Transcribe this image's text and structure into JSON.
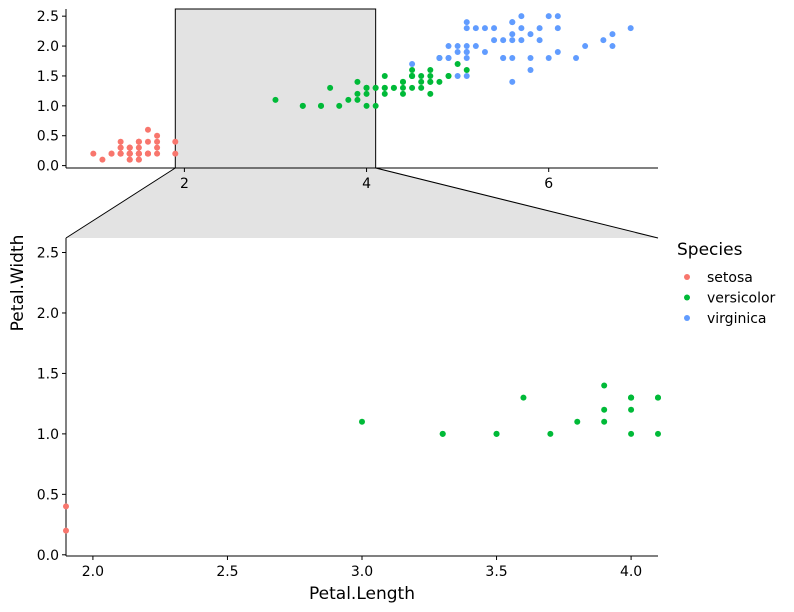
{
  "chart_data": {
    "type": "scatter",
    "xlabel": "Petal.Length",
    "ylabel": "Petal.Width",
    "legend": {
      "title": "Species",
      "placement": "right"
    },
    "colors": {
      "setosa": "#F8766D",
      "versicolor": "#00BA38",
      "virginica": "#619CFF",
      "zoom_fill": "#e3e3e3"
    },
    "overview": {
      "xlim": [
        0.7,
        7.2
      ],
      "ylim": [
        -0.04,
        2.62
      ],
      "xticks": [
        2,
        4,
        6
      ],
      "yticks": [
        0.0,
        0.5,
        1.0,
        1.5,
        2.0,
        2.5
      ],
      "ytick_labels": [
        "0.0",
        "0.5",
        "1.0",
        "1.5",
        "2.0",
        "2.5"
      ],
      "zoom_xrange": [
        1.9,
        4.1
      ]
    },
    "zoom": {
      "xlim": [
        1.9,
        4.1
      ],
      "ylim": [
        -0.01,
        2.62
      ],
      "xticks": [
        2.0,
        2.5,
        3.0,
        3.5,
        4.0
      ],
      "xtick_labels": [
        "2.0",
        "2.5",
        "3.0",
        "3.5",
        "4.0"
      ],
      "yticks": [
        0.0,
        0.5,
        1.0,
        1.5,
        2.0,
        2.5
      ],
      "ytick_labels": [
        "0.0",
        "0.5",
        "1.0",
        "1.5",
        "2.0",
        "2.5"
      ]
    },
    "series": [
      {
        "name": "setosa",
        "x": [
          1.4,
          1.4,
          1.3,
          1.5,
          1.4,
          1.7,
          1.4,
          1.5,
          1.4,
          1.5,
          1.5,
          1.6,
          1.4,
          1.1,
          1.2,
          1.5,
          1.3,
          1.4,
          1.7,
          1.5,
          1.7,
          1.5,
          1.0,
          1.7,
          1.9,
          1.6,
          1.6,
          1.5,
          1.4,
          1.6,
          1.6,
          1.5,
          1.5,
          1.4,
          1.5,
          1.2,
          1.3,
          1.4,
          1.3,
          1.5,
          1.3,
          1.3,
          1.3,
          1.6,
          1.9,
          1.4,
          1.6,
          1.4,
          1.5,
          1.4
        ],
        "y": [
          0.2,
          0.2,
          0.2,
          0.2,
          0.2,
          0.4,
          0.3,
          0.2,
          0.2,
          0.1,
          0.2,
          0.2,
          0.1,
          0.1,
          0.2,
          0.4,
          0.4,
          0.3,
          0.3,
          0.3,
          0.2,
          0.4,
          0.2,
          0.5,
          0.2,
          0.2,
          0.4,
          0.2,
          0.2,
          0.2,
          0.2,
          0.4,
          0.1,
          0.2,
          0.2,
          0.2,
          0.2,
          0.1,
          0.2,
          0.2,
          0.3,
          0.3,
          0.2,
          0.6,
          0.4,
          0.3,
          0.2,
          0.2,
          0.2,
          0.2
        ]
      },
      {
        "name": "versicolor",
        "x": [
          4.7,
          4.5,
          4.9,
          4.0,
          4.6,
          4.5,
          4.7,
          3.3,
          4.6,
          3.9,
          3.5,
          4.2,
          4.0,
          4.7,
          3.6,
          4.4,
          4.5,
          4.1,
          4.5,
          3.9,
          4.8,
          4.0,
          4.9,
          4.7,
          4.3,
          4.4,
          4.8,
          5.0,
          4.5,
          3.5,
          3.8,
          3.7,
          3.9,
          5.1,
          4.5,
          4.5,
          4.7,
          4.4,
          4.1,
          4.0,
          4.4,
          4.6,
          4.0,
          3.3,
          4.2,
          4.2,
          4.2,
          4.3,
          3.0,
          4.1
        ],
        "y": [
          1.4,
          1.5,
          1.5,
          1.3,
          1.5,
          1.3,
          1.6,
          1.0,
          1.3,
          1.4,
          1.0,
          1.5,
          1.0,
          1.4,
          1.3,
          1.4,
          1.5,
          1.0,
          1.5,
          1.1,
          1.8,
          1.3,
          1.5,
          1.2,
          1.3,
          1.4,
          1.4,
          1.7,
          1.5,
          1.0,
          1.1,
          1.0,
          1.2,
          1.6,
          1.5,
          1.6,
          1.5,
          1.3,
          1.3,
          1.3,
          1.2,
          1.4,
          1.2,
          1.0,
          1.3,
          1.2,
          1.3,
          1.3,
          1.1,
          1.3
        ]
      },
      {
        "name": "virginica",
        "x": [
          6.0,
          5.1,
          5.9,
          5.6,
          5.8,
          6.6,
          4.5,
          6.3,
          5.8,
          6.1,
          5.1,
          5.3,
          5.5,
          5.0,
          5.1,
          5.3,
          5.5,
          6.7,
          6.9,
          5.0,
          5.7,
          4.9,
          6.7,
          4.9,
          5.7,
          6.0,
          4.8,
          4.9,
          5.6,
          5.8,
          6.1,
          6.4,
          5.6,
          5.1,
          5.6,
          6.1,
          5.6,
          5.5,
          4.8,
          5.4,
          5.6,
          5.1,
          5.1,
          5.9,
          5.7,
          5.2,
          5.0,
          5.2,
          5.4,
          5.1
        ],
        "y": [
          2.5,
          1.9,
          2.1,
          1.8,
          2.2,
          2.1,
          1.7,
          1.8,
          1.8,
          2.5,
          2.0,
          1.9,
          2.1,
          2.0,
          2.4,
          2.3,
          1.8,
          2.2,
          2.3,
          1.5,
          2.3,
          2.0,
          2.0,
          1.8,
          2.1,
          1.8,
          1.8,
          1.8,
          2.1,
          1.6,
          1.9,
          2.0,
          2.2,
          1.5,
          1.4,
          2.3,
          2.4,
          1.8,
          1.8,
          2.1,
          2.4,
          2.3,
          1.9,
          2.3,
          2.5,
          2.3,
          1.9,
          2.0,
          2.3,
          1.8
        ]
      }
    ]
  }
}
